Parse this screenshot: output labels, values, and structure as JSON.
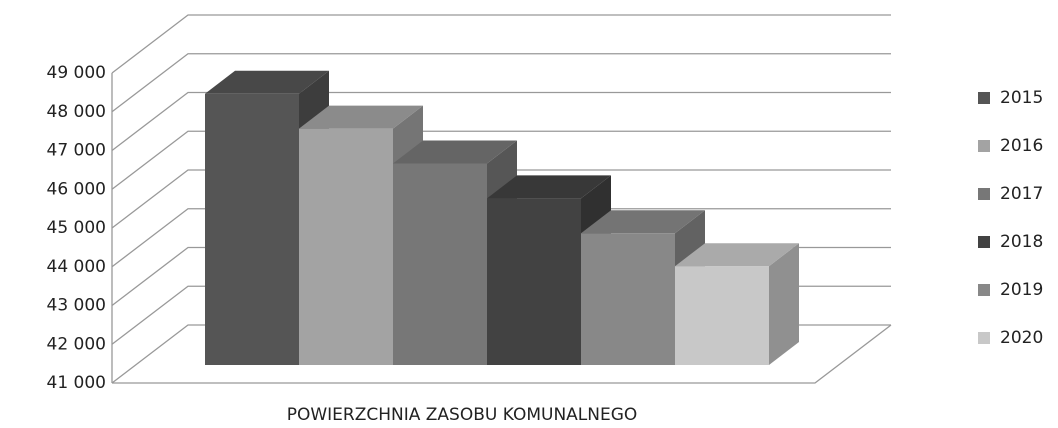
{
  "chart_data": {
    "type": "bar3d",
    "categories": [
      "POWIERZCHNIA ZASOBU KOMUNALNEGO"
    ],
    "series": [
      {
        "name": "2015",
        "color": "#555555",
        "values": [
          48000
        ]
      },
      {
        "name": "2016",
        "color": "#a3a3a3",
        "values": [
          47100
        ]
      },
      {
        "name": "2017",
        "color": "#777777",
        "values": [
          46200
        ]
      },
      {
        "name": "2018",
        "color": "#424242",
        "values": [
          45300
        ]
      },
      {
        "name": "2019",
        "color": "#888888",
        "values": [
          44400
        ]
      },
      {
        "name": "2020",
        "color": "#c8c8c8",
        "values": [
          43550
        ]
      }
    ],
    "ylim": [
      41000,
      49000
    ],
    "yticks": [
      {
        "value": 41000,
        "label": "41 000"
      },
      {
        "value": 42000,
        "label": "42 000"
      },
      {
        "value": 43000,
        "label": "43 000"
      },
      {
        "value": 44000,
        "label": "44 000"
      },
      {
        "value": 45000,
        "label": "45 000"
      },
      {
        "value": 46000,
        "label": "46 000"
      },
      {
        "value": 47000,
        "label": "47 000"
      },
      {
        "value": 48000,
        "label": "48 000"
      },
      {
        "value": 49000,
        "label": "49 000"
      }
    ],
    "grid": true,
    "legend": "right"
  }
}
